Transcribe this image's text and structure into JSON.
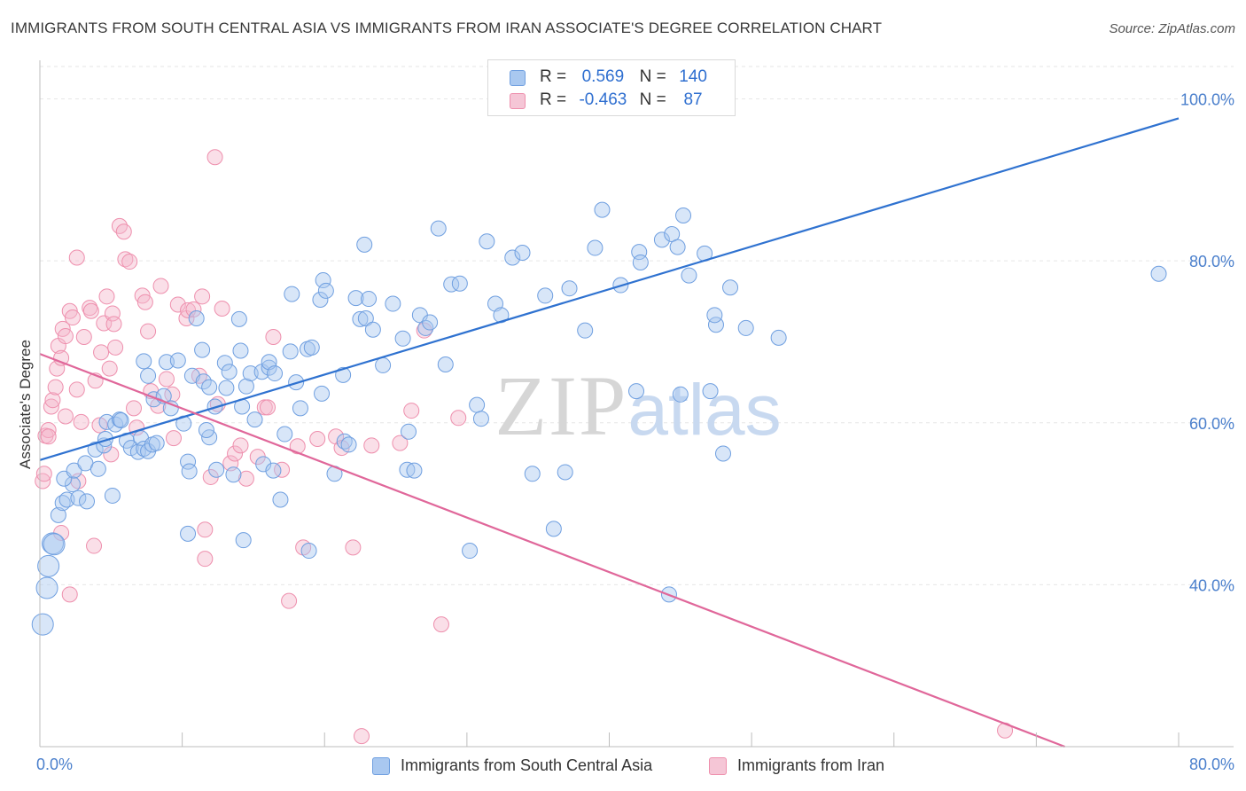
{
  "title": "IMMIGRANTS FROM SOUTH CENTRAL ASIA VS IMMIGRANTS FROM IRAN ASSOCIATE'S DEGREE CORRELATION CHART",
  "source": "Source: ZipAtlas.com",
  "watermark": "ZIPatlas",
  "legend": {
    "rows": [
      {
        "r_label": "R =",
        "r_value": "0.569",
        "n_label": "N =",
        "n_value": "140"
      },
      {
        "r_label": "R =",
        "r_value": "-0.463",
        "n_label": "N =",
        "n_value": "87"
      }
    ]
  },
  "colors": {
    "blue_fill": "#a9c8f0",
    "blue_stroke": "#6f9fe0",
    "blue_line": "#2f72d0",
    "pink_fill": "#f5b8cc",
    "pink_stroke": "#ee8fad",
    "pink_line": "#e0679a",
    "tick_text": "#4a7fcc",
    "grid": "#e6e6e6"
  },
  "chart_data": {
    "type": "scatter",
    "title": "IMMIGRANTS FROM SOUTH CENTRAL ASIA VS IMMIGRANTS FROM IRAN ASSOCIATE'S DEGREE CORRELATION CHART",
    "xlabel": "",
    "ylabel": "Associate's Degree",
    "xlim": [
      0,
      80
    ],
    "ylim": [
      20,
      104
    ],
    "x_tick_labels": [
      "0.0%",
      "80.0%"
    ],
    "y_ticks": [
      40,
      60,
      80,
      100
    ],
    "y_tick_labels": [
      "40.0%",
      "60.0%",
      "80.0%",
      "100.0%"
    ],
    "grid": true,
    "legend_position": "top-center",
    "series": [
      {
        "name": "Immigrants from South Central Asia",
        "color": "#6f9fe0",
        "trend": {
          "x": [
            0,
            80
          ],
          "y": [
            55.4,
            97.6
          ]
        },
        "points": [
          [
            0.2,
            35.1
          ],
          [
            0.5,
            39.6
          ],
          [
            0.6,
            42.3
          ],
          [
            0.9,
            45.1
          ],
          [
            1.0,
            45.0
          ],
          [
            1.3,
            48.6
          ],
          [
            1.6,
            50.1
          ],
          [
            1.9,
            50.5
          ],
          [
            2.3,
            52.4
          ],
          [
            1.7,
            53.1
          ],
          [
            2.4,
            54.1
          ],
          [
            2.7,
            50.7
          ],
          [
            3.3,
            50.3
          ],
          [
            3.2,
            55.0
          ],
          [
            4.1,
            54.3
          ],
          [
            5.1,
            51.0
          ],
          [
            3.9,
            56.7
          ],
          [
            4.5,
            57.2
          ],
          [
            4.6,
            58.0
          ],
          [
            4.7,
            60.1
          ],
          [
            5.3,
            59.8
          ],
          [
            5.6,
            60.4
          ],
          [
            5.7,
            60.3
          ],
          [
            6.1,
            57.8
          ],
          [
            6.4,
            56.9
          ],
          [
            6.9,
            56.4
          ],
          [
            7.1,
            58.1
          ],
          [
            7.3,
            56.8
          ],
          [
            7.6,
            56.5
          ],
          [
            7.9,
            57.3
          ],
          [
            8.2,
            57.5
          ],
          [
            8.0,
            62.9
          ],
          [
            7.3,
            67.6
          ],
          [
            7.6,
            65.8
          ],
          [
            8.7,
            63.3
          ],
          [
            8.9,
            67.5
          ],
          [
            9.2,
            61.8
          ],
          [
            9.7,
            67.7
          ],
          [
            10.1,
            59.9
          ],
          [
            10.4,
            55.2
          ],
          [
            10.7,
            65.8
          ],
          [
            11.0,
            72.9
          ],
          [
            11.4,
            69.0
          ],
          [
            11.5,
            65.1
          ],
          [
            11.9,
            58.2
          ],
          [
            12.3,
            62.0
          ],
          [
            11.9,
            64.4
          ],
          [
            13.1,
            64.3
          ],
          [
            12.4,
            54.2
          ],
          [
            13.0,
            67.4
          ],
          [
            13.3,
            66.3
          ],
          [
            13.6,
            53.6
          ],
          [
            14.1,
            68.9
          ],
          [
            14.0,
            72.8
          ],
          [
            14.5,
            64.5
          ],
          [
            14.8,
            66.1
          ],
          [
            15.1,
            60.4
          ],
          [
            15.6,
            66.3
          ],
          [
            16.1,
            66.8
          ],
          [
            15.7,
            54.9
          ],
          [
            14.2,
            62.0
          ],
          [
            16.1,
            67.5
          ],
          [
            16.5,
            66.1
          ],
          [
            16.9,
            50.5
          ],
          [
            17.2,
            58.6
          ],
          [
            17.7,
            75.9
          ],
          [
            17.6,
            68.8
          ],
          [
            18.0,
            65.0
          ],
          [
            18.3,
            61.8
          ],
          [
            18.8,
            69.1
          ],
          [
            19.1,
            69.3
          ],
          [
            19.7,
            75.2
          ],
          [
            19.9,
            77.6
          ],
          [
            20.1,
            76.3
          ],
          [
            19.8,
            63.6
          ],
          [
            20.7,
            53.7
          ],
          [
            21.3,
            65.9
          ],
          [
            21.4,
            57.7
          ],
          [
            22.2,
            75.4
          ],
          [
            22.5,
            72.8
          ],
          [
            22.9,
            72.9
          ],
          [
            23.1,
            75.3
          ],
          [
            23.4,
            71.5
          ],
          [
            24.1,
            67.1
          ],
          [
            24.8,
            74.7
          ],
          [
            25.5,
            70.4
          ],
          [
            25.9,
            58.9
          ],
          [
            25.8,
            54.2
          ],
          [
            26.3,
            54.1
          ],
          [
            26.7,
            73.3
          ],
          [
            27.1,
            71.7
          ],
          [
            27.4,
            72.4
          ],
          [
            28.0,
            84.0
          ],
          [
            28.5,
            67.2
          ],
          [
            28.9,
            77.1
          ],
          [
            29.5,
            77.2
          ],
          [
            30.2,
            44.2
          ],
          [
            30.7,
            62.2
          ],
          [
            31.0,
            60.5
          ],
          [
            31.4,
            82.4
          ],
          [
            32.0,
            74.7
          ],
          [
            32.4,
            73.3
          ],
          [
            33.2,
            80.4
          ],
          [
            33.9,
            81.0
          ],
          [
            34.6,
            53.7
          ],
          [
            35.5,
            75.7
          ],
          [
            36.1,
            46.9
          ],
          [
            36.9,
            53.9
          ],
          [
            37.2,
            76.6
          ],
          [
            38.3,
            71.4
          ],
          [
            22.8,
            82.0
          ],
          [
            21.7,
            57.3
          ],
          [
            10.4,
            46.3
          ],
          [
            10.5,
            54.0
          ],
          [
            11.7,
            59.1
          ],
          [
            16.4,
            54.1
          ],
          [
            18.9,
            44.2
          ],
          [
            14.3,
            45.5
          ],
          [
            39.0,
            81.6
          ],
          [
            39.5,
            86.3
          ],
          [
            40.8,
            77.0
          ],
          [
            41.9,
            63.9
          ],
          [
            42.1,
            81.1
          ],
          [
            42.2,
            79.8
          ],
          [
            43.7,
            82.6
          ],
          [
            44.4,
            83.3
          ],
          [
            44.2,
            38.8
          ],
          [
            44.8,
            81.7
          ],
          [
            45.2,
            85.6
          ],
          [
            45.6,
            78.2
          ],
          [
            46.7,
            80.9
          ],
          [
            47.5,
            72.1
          ],
          [
            47.4,
            73.3
          ],
          [
            47.1,
            63.9
          ],
          [
            48.0,
            56.2
          ],
          [
            48.5,
            76.7
          ],
          [
            49.6,
            71.7
          ],
          [
            51.9,
            70.5
          ],
          [
            78.6,
            78.4
          ],
          [
            45.0,
            63.5
          ]
        ]
      },
      {
        "name": "Immigrants from Iran",
        "color": "#ee8fad",
        "trend": {
          "x": [
            0,
            72
          ],
          "y": [
            68.5,
            20.0
          ]
        },
        "points": [
          [
            0.2,
            52.8
          ],
          [
            0.3,
            53.7
          ],
          [
            0.4,
            58.4
          ],
          [
            0.6,
            59.1
          ],
          [
            0.8,
            62.0
          ],
          [
            0.9,
            62.8
          ],
          [
            1.1,
            64.4
          ],
          [
            1.2,
            66.7
          ],
          [
            1.3,
            69.5
          ],
          [
            1.5,
            68.0
          ],
          [
            1.6,
            71.6
          ],
          [
            1.8,
            70.7
          ],
          [
            2.1,
            73.8
          ],
          [
            2.3,
            73.0
          ],
          [
            2.6,
            64.1
          ],
          [
            2.9,
            60.1
          ],
          [
            2.6,
            80.4
          ],
          [
            3.1,
            70.6
          ],
          [
            3.5,
            74.2
          ],
          [
            3.6,
            73.8
          ],
          [
            3.9,
            65.2
          ],
          [
            4.3,
            68.7
          ],
          [
            4.5,
            72.3
          ],
          [
            4.7,
            75.6
          ],
          [
            4.9,
            66.7
          ],
          [
            5.1,
            73.5
          ],
          [
            5.2,
            72.2
          ],
          [
            5.3,
            69.3
          ],
          [
            5.6,
            84.3
          ],
          [
            5.9,
            83.6
          ],
          [
            6.0,
            80.2
          ],
          [
            6.3,
            79.9
          ],
          [
            6.6,
            61.8
          ],
          [
            6.8,
            59.4
          ],
          [
            7.2,
            75.7
          ],
          [
            7.4,
            74.9
          ],
          [
            7.6,
            71.3
          ],
          [
            7.8,
            63.9
          ],
          [
            8.3,
            62.1
          ],
          [
            8.5,
            76.9
          ],
          [
            8.9,
            65.4
          ],
          [
            9.3,
            63.5
          ],
          [
            9.4,
            58.1
          ],
          [
            9.7,
            74.6
          ],
          [
            10.3,
            72.9
          ],
          [
            10.4,
            73.9
          ],
          [
            10.8,
            74.0
          ],
          [
            11.4,
            75.6
          ],
          [
            11.2,
            65.8
          ],
          [
            11.6,
            46.8
          ],
          [
            12.0,
            53.3
          ],
          [
            12.3,
            92.8
          ],
          [
            11.6,
            43.2
          ],
          [
            12.5,
            62.3
          ],
          [
            12.8,
            74.1
          ],
          [
            13.4,
            55.0
          ],
          [
            13.7,
            56.2
          ],
          [
            14.1,
            57.2
          ],
          [
            14.5,
            53.1
          ],
          [
            15.3,
            55.8
          ],
          [
            15.8,
            61.9
          ],
          [
            16.0,
            61.9
          ],
          [
            16.4,
            70.6
          ],
          [
            17.0,
            54.2
          ],
          [
            17.5,
            38.0
          ],
          [
            18.1,
            57.1
          ],
          [
            18.5,
            44.6
          ],
          [
            19.5,
            58.0
          ],
          [
            20.8,
            58.3
          ],
          [
            21.2,
            56.9
          ],
          [
            22.0,
            44.6
          ],
          [
            22.6,
            21.3
          ],
          [
            23.3,
            57.2
          ],
          [
            25.3,
            57.5
          ],
          [
            26.1,
            61.5
          ],
          [
            27.0,
            71.4
          ],
          [
            28.2,
            35.1
          ],
          [
            29.4,
            60.6
          ],
          [
            3.8,
            44.8
          ],
          [
            1.5,
            46.4
          ],
          [
            0.6,
            58.3
          ],
          [
            1.8,
            60.8
          ],
          [
            2.7,
            52.8
          ],
          [
            5.0,
            56.1
          ],
          [
            4.2,
            59.7
          ],
          [
            2.1,
            38.8
          ],
          [
            67.8,
            22.0
          ]
        ]
      }
    ]
  },
  "bottom_legend": [
    {
      "label": "Immigrants from South Central Asia"
    },
    {
      "label": "Immigrants from Iran"
    }
  ]
}
